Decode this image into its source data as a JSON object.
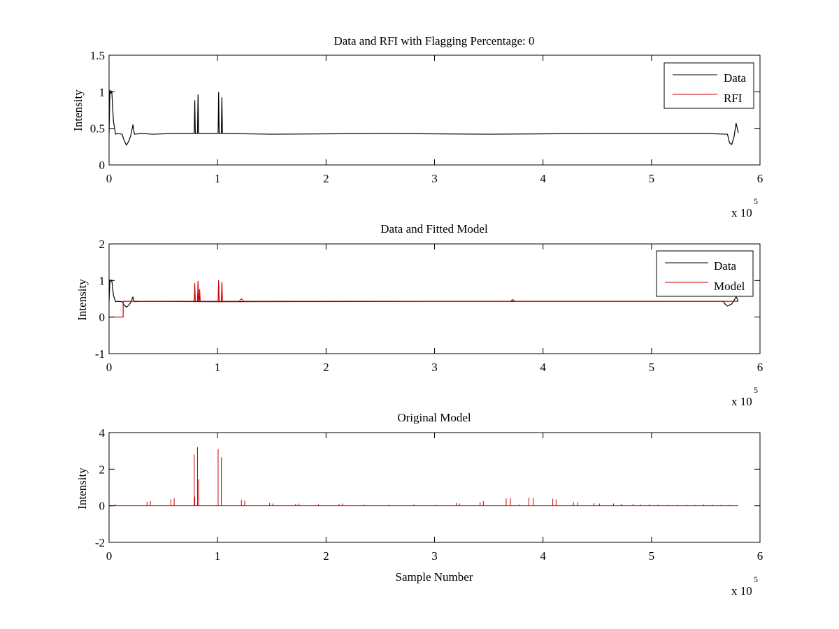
{
  "figure": {
    "background": "#ffffff",
    "axis_color": "#000000"
  },
  "chart_data": [
    {
      "type": "line",
      "title": "Data and RFI with Flagging Percentage: 0",
      "xlabel": "",
      "ylabel": "Intensity",
      "xlim": [
        0,
        600000
      ],
      "ylim": [
        0,
        1.5
      ],
      "xticks": [
        0,
        1,
        2,
        3,
        4,
        5,
        6
      ],
      "yticks": [
        0,
        0.5,
        1,
        1.5
      ],
      "x_exponent_label": "x 10",
      "x_exponent_power": "5",
      "grid": false,
      "legend": {
        "placement": "top-right"
      },
      "series": [
        {
          "name": "Data",
          "color": "#000000",
          "x": [
            0,
            800,
            1500,
            2500,
            4000,
            6000,
            8000,
            12000,
            14000,
            16000,
            18000,
            20000,
            22000,
            23000,
            23500,
            30000,
            40000,
            60000,
            78500,
            79000,
            79500,
            80000,
            81500,
            82000,
            82500,
            83000,
            90000,
            100500,
            101000,
            101500,
            102000,
            103500,
            104000,
            104500,
            105000,
            150000,
            250000,
            350000,
            450000,
            550000,
            570000,
            572000,
            574000,
            576000,
            578000,
            580000
          ],
          "y": [
            0.42,
            1.02,
            0.98,
            1.01,
            0.6,
            0.42,
            0.43,
            0.42,
            0.33,
            0.27,
            0.32,
            0.4,
            0.55,
            0.45,
            0.42,
            0.43,
            0.42,
            0.43,
            0.43,
            0.88,
            0.43,
            0.43,
            0.43,
            0.96,
            0.43,
            0.43,
            0.43,
            0.43,
            0.99,
            0.43,
            0.43,
            0.43,
            0.92,
            0.43,
            0.43,
            0.42,
            0.43,
            0.42,
            0.43,
            0.43,
            0.42,
            0.3,
            0.28,
            0.38,
            0.57,
            0.44
          ]
        },
        {
          "name": "RFI",
          "color": "#cc0000",
          "x": [],
          "y": []
        }
      ]
    },
    {
      "type": "line",
      "title": "Data and Fitted Model",
      "xlabel": "",
      "ylabel": "Intensity",
      "xlim": [
        0,
        600000
      ],
      "ylim": [
        -1,
        2
      ],
      "xticks": [
        0,
        1,
        2,
        3,
        4,
        5,
        6
      ],
      "yticks": [
        -1,
        0,
        1,
        2
      ],
      "x_exponent_label": "x 10",
      "x_exponent_power": "5",
      "grid": false,
      "legend": {
        "placement": "top-right"
      },
      "series": [
        {
          "name": "Data",
          "color": "#000000",
          "x": [
            0,
            800,
            1500,
            2500,
            4000,
            6000,
            8000,
            12000,
            14000,
            16000,
            18000,
            20000,
            22000,
            23000,
            23500,
            30000,
            100000,
            300000,
            560000,
            566000,
            568000,
            570000,
            574000,
            578000,
            580000
          ],
          "y": [
            0.42,
            1.02,
            0.98,
            1.01,
            0.6,
            0.42,
            0.43,
            0.42,
            0.33,
            0.27,
            0.32,
            0.4,
            0.55,
            0.45,
            0.42,
            0.43,
            0.42,
            0.43,
            0.43,
            0.43,
            0.35,
            0.3,
            0.36,
            0.55,
            0.44
          ]
        },
        {
          "name": "Model",
          "color": "#cc0000",
          "x": [
            0,
            13000,
            13000,
            78500,
            79000,
            79500,
            81500,
            82000,
            82500,
            83000,
            83500,
            84000,
            100500,
            101000,
            101500,
            103500,
            104000,
            104500,
            120000,
            122000,
            124000,
            370000,
            372000,
            374000,
            580000
          ],
          "y": [
            0,
            0,
            0.43,
            0.43,
            0.92,
            0.43,
            0.43,
            0.98,
            0.43,
            0.43,
            0.75,
            0.43,
            0.43,
            1.0,
            0.43,
            0.43,
            0.95,
            0.43,
            0.43,
            0.5,
            0.43,
            0.43,
            0.48,
            0.43,
            0.43
          ]
        }
      ]
    },
    {
      "type": "line",
      "title": "Original Model",
      "xlabel": "Sample Number",
      "ylabel": "Intensity",
      "xlim": [
        0,
        600000
      ],
      "ylim": [
        -2,
        4
      ],
      "xticks": [
        0,
        1,
        2,
        3,
        4,
        5,
        6
      ],
      "yticks": [
        -2,
        0,
        2,
        4
      ],
      "x_exponent_label": "x 10",
      "x_exponent_power": "5",
      "grid": false,
      "series": [
        {
          "name": "",
          "color": "#cc0000",
          "baseline": 0,
          "spikes": [
            [
              6000,
              0.08
            ],
            [
              35000,
              0.22
            ],
            [
              38000,
              0.25
            ],
            [
              57000,
              0.35
            ],
            [
              60000,
              0.42
            ],
            [
              78500,
              2.8
            ],
            [
              79000,
              0.5
            ],
            [
              81500,
              3.2
            ],
            [
              82500,
              1.45
            ],
            [
              100500,
              3.1
            ],
            [
              103500,
              2.65
            ],
            [
              122000,
              0.32
            ],
            [
              125000,
              0.28
            ],
            [
              148000,
              0.15
            ],
            [
              151000,
              0.12
            ],
            [
              172000,
              0.1
            ],
            [
              175000,
              0.12
            ],
            [
              193000,
              0.08
            ],
            [
              212000,
              0.1
            ],
            [
              215000,
              0.12
            ],
            [
              235000,
              0.07
            ],
            [
              258000,
              0.06
            ],
            [
              281000,
              0.07
            ],
            [
              301000,
              0.06
            ],
            [
              320000,
              0.15
            ],
            [
              323000,
              0.12
            ],
            [
              342000,
              0.2
            ],
            [
              345000,
              0.25
            ],
            [
              366000,
              0.4
            ],
            [
              370000,
              0.42
            ],
            [
              378000,
              0.07
            ],
            [
              387000,
              0.45
            ],
            [
              391000,
              0.42
            ],
            [
              409000,
              0.38
            ],
            [
              412000,
              0.35
            ],
            [
              428000,
              0.2
            ],
            [
              432000,
              0.18
            ],
            [
              447000,
              0.15
            ],
            [
              452000,
              0.12
            ],
            [
              465000,
              0.12
            ],
            [
              472000,
              0.1
            ],
            [
              483000,
              0.1
            ],
            [
              490000,
              0.07
            ],
            [
              498000,
              0.08
            ],
            [
              506000,
              0.06
            ],
            [
              515000,
              0.06
            ],
            [
              524000,
              0.05
            ],
            [
              532000,
              0.06
            ],
            [
              540000,
              0.05
            ],
            [
              548000,
              0.07
            ],
            [
              556000,
              0.06
            ],
            [
              564000,
              0.05
            ],
            [
              572000,
              0.04
            ]
          ],
          "x_end": 580000
        }
      ]
    }
  ]
}
